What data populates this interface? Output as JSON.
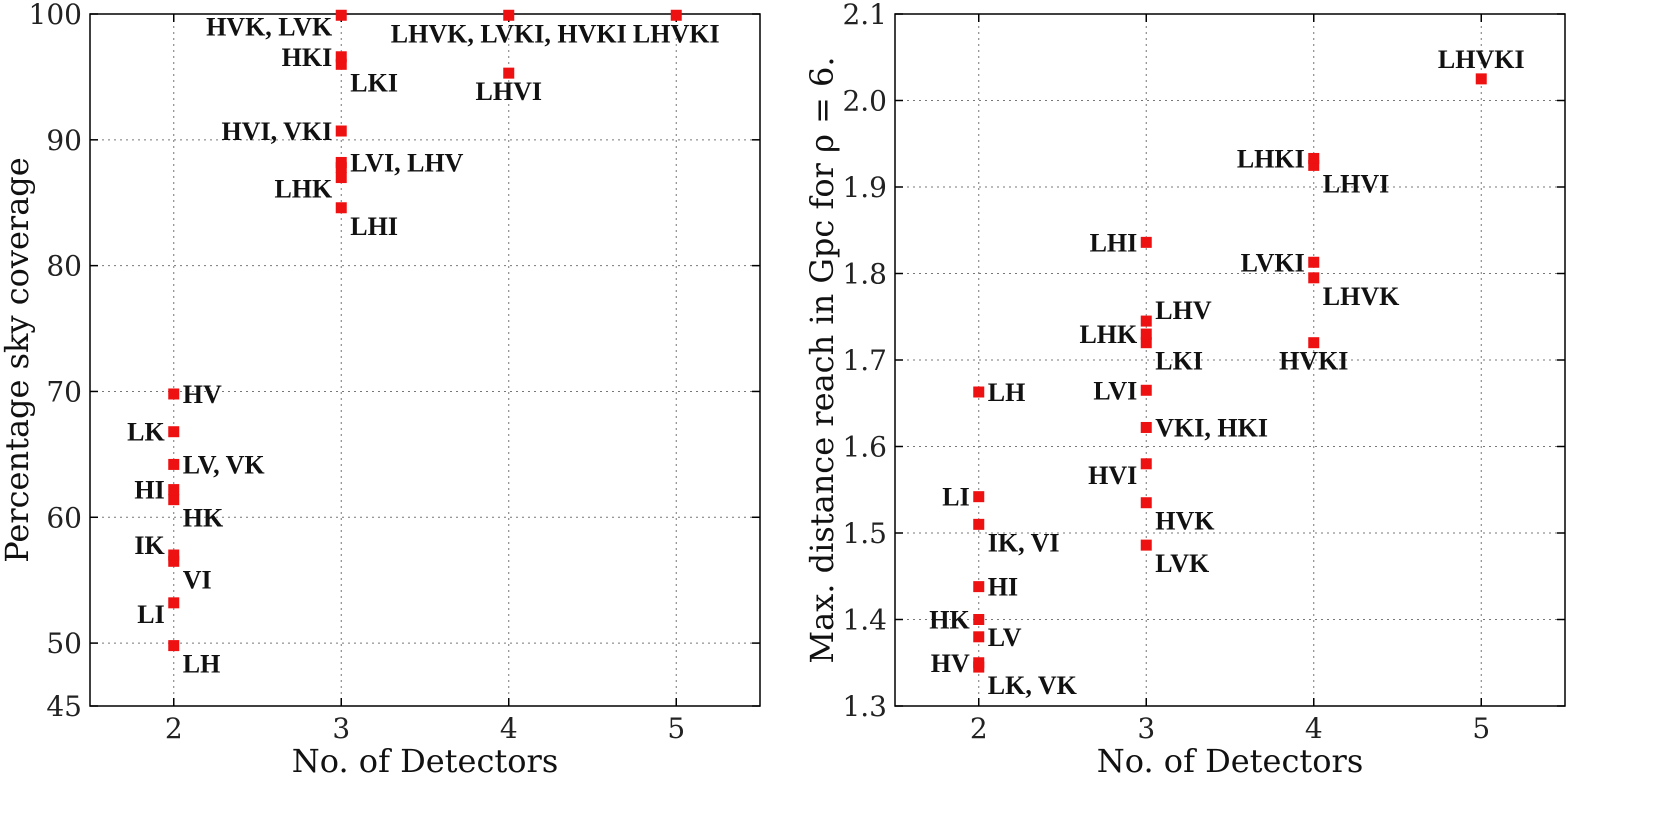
{
  "chart_data": [
    {
      "type": "scatter",
      "title": "",
      "xlabel": "No. of Detectors",
      "ylabel": "Percentage sky coverage",
      "xlim": [
        1.5,
        5.5
      ],
      "ylim": [
        45,
        100
      ],
      "xticks": [
        2,
        3,
        4,
        5
      ],
      "yticks": [
        45,
        50,
        60,
        70,
        80,
        90,
        100
      ],
      "grid": true,
      "points": [
        {
          "label": "LH",
          "x": 2,
          "y": 49.8,
          "side": "right-below"
        },
        {
          "label": "LI",
          "x": 2,
          "y": 53.2,
          "side": "left-below"
        },
        {
          "label": "VI",
          "x": 2,
          "y": 56.5,
          "side": "right-below"
        },
        {
          "label": "IK",
          "x": 2,
          "y": 57.0,
          "side": "left-above"
        },
        {
          "label": "HK",
          "x": 2,
          "y": 61.4,
          "side": "right-below"
        },
        {
          "label": "HI",
          "x": 2,
          "y": 62.2,
          "side": "left"
        },
        {
          "label": "LV, VK",
          "x": 2,
          "y": 64.2,
          "side": "right"
        },
        {
          "label": "LK",
          "x": 2,
          "y": 66.8,
          "side": "left"
        },
        {
          "label": "HV",
          "x": 2,
          "y": 69.8,
          "side": "right"
        },
        {
          "label": "LHI",
          "x": 3,
          "y": 84.6,
          "side": "right-below"
        },
        {
          "label": "LHK",
          "x": 3,
          "y": 87.0,
          "side": "left-below"
        },
        {
          "label": "LVI, LHV",
          "x": 3,
          "y": 88.2,
          "side": "right"
        },
        {
          "label": "",
          "x": 3,
          "y": 87.8,
          "side": "none"
        },
        {
          "label": "HVI, VKI",
          "x": 3,
          "y": 90.7,
          "side": "left"
        },
        {
          "label": "LKI",
          "x": 3,
          "y": 96.0,
          "side": "right-below"
        },
        {
          "label": "HKI",
          "x": 3,
          "y": 96.6,
          "side": "left"
        },
        {
          "label": "HVK, LVK",
          "x": 3,
          "y": 99.9,
          "side": "left-below"
        },
        {
          "label": "LHVI",
          "x": 4,
          "y": 95.3,
          "side": "below"
        },
        {
          "label": "LHVK, LVKI, HVKI",
          "x": 4,
          "y": 99.9,
          "side": "below"
        },
        {
          "label": "LHVKI",
          "x": 5,
          "y": 99.9,
          "side": "below"
        }
      ]
    },
    {
      "type": "scatter",
      "title": "",
      "xlabel": "No. of Detectors",
      "ylabel": "Max. distance reach in Gpc for ρ = 6.",
      "xlim": [
        1.5,
        5.5
      ],
      "ylim": [
        1.3,
        2.1
      ],
      "xticks": [
        2,
        3,
        4,
        5
      ],
      "yticks": [
        1.3,
        1.4,
        1.5,
        1.6,
        1.7,
        1.8,
        1.9,
        2.0,
        2.1
      ],
      "grid": true,
      "points": [
        {
          "label": "LK, VK",
          "x": 2,
          "y": 1.345,
          "side": "right-below"
        },
        {
          "label": "HV",
          "x": 2,
          "y": 1.35,
          "side": "left"
        },
        {
          "label": "LV",
          "x": 2,
          "y": 1.38,
          "side": "right"
        },
        {
          "label": "HK",
          "x": 2,
          "y": 1.4,
          "side": "left"
        },
        {
          "label": "HI",
          "x": 2,
          "y": 1.438,
          "side": "right"
        },
        {
          "label": "IK, VI",
          "x": 2,
          "y": 1.51,
          "side": "right-below"
        },
        {
          "label": "LI",
          "x": 2,
          "y": 1.542,
          "side": "left"
        },
        {
          "label": "LH",
          "x": 2,
          "y": 1.663,
          "side": "right"
        },
        {
          "label": "LVK",
          "x": 3,
          "y": 1.486,
          "side": "right-below"
        },
        {
          "label": "HVK",
          "x": 3,
          "y": 1.535,
          "side": "right-below"
        },
        {
          "label": "HVI",
          "x": 3,
          "y": 1.58,
          "side": "left-below"
        },
        {
          "label": "VKI, HKI",
          "x": 3,
          "y": 1.622,
          "side": "right"
        },
        {
          "label": "LVI",
          "x": 3,
          "y": 1.665,
          "side": "left"
        },
        {
          "label": "LKI",
          "x": 3,
          "y": 1.72,
          "side": "right-below"
        },
        {
          "label": "LHK",
          "x": 3,
          "y": 1.73,
          "side": "left"
        },
        {
          "label": "LHV",
          "x": 3,
          "y": 1.745,
          "side": "right-above"
        },
        {
          "label": "LHI",
          "x": 3,
          "y": 1.836,
          "side": "left"
        },
        {
          "label": "HVKI",
          "x": 4,
          "y": 1.72,
          "side": "below"
        },
        {
          "label": "LHVK",
          "x": 4,
          "y": 1.795,
          "side": "right-below"
        },
        {
          "label": "LVKI",
          "x": 4,
          "y": 1.813,
          "side": "left"
        },
        {
          "label": "LHVI",
          "x": 4,
          "y": 1.925,
          "side": "right-below"
        },
        {
          "label": "LHKI",
          "x": 4,
          "y": 1.933,
          "side": "left"
        },
        {
          "label": "LHVKI",
          "x": 5,
          "y": 2.025,
          "side": "above"
        }
      ]
    }
  ],
  "colors": {
    "marker": "#ee1111",
    "grid": "#777777"
  }
}
